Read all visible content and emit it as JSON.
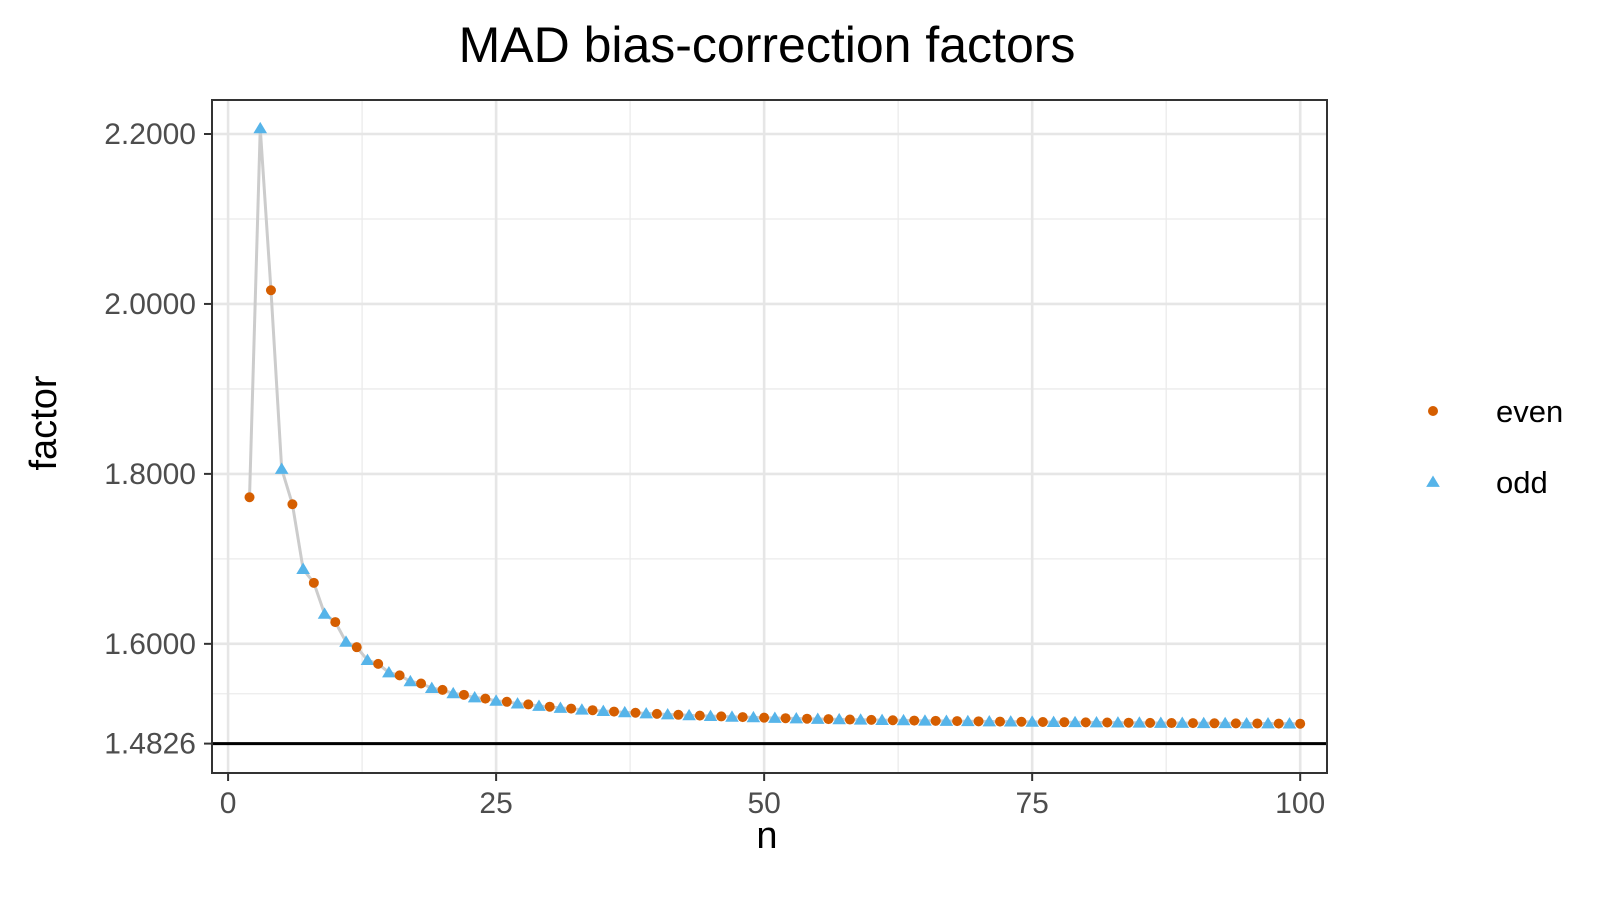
{
  "chart_data": {
    "type": "scatter",
    "title": "MAD bias-correction factors",
    "xlabel": "n",
    "ylabel": "factor",
    "xlim": [
      -1.5,
      102.5
    ],
    "ylim": [
      1.448,
      2.24
    ],
    "x_ticks": [
      0,
      25,
      50,
      75,
      100
    ],
    "x_tick_labels": [
      "0",
      "25",
      "50",
      "75",
      "100"
    ],
    "y_ticks": [
      1.4826,
      1.6,
      1.8,
      2.0,
      2.2
    ],
    "y_tick_labels": [
      "1.4826",
      "1.6000",
      "1.8000",
      "2.0000",
      "2.2000"
    ],
    "reference_line": {
      "y": 1.4826,
      "color": "#000000"
    },
    "grid": true,
    "legend_position": "right",
    "connecting_line_color": "#cccccc",
    "series": [
      {
        "name": "even",
        "shape": "circle",
        "color": "#d55e00",
        "parity": 0
      },
      {
        "name": "odd",
        "shape": "triangle",
        "color": "#56b4e9",
        "parity": 1
      }
    ],
    "x": [
      2,
      3,
      4,
      5,
      6,
      7,
      8,
      9,
      10,
      11,
      12,
      13,
      14,
      15,
      16,
      17,
      18,
      19,
      20,
      21,
      22,
      23,
      24,
      25,
      26,
      27,
      28,
      29,
      30,
      31,
      32,
      33,
      34,
      35,
      36,
      37,
      38,
      39,
      40,
      41,
      42,
      43,
      44,
      45,
      46,
      47,
      48,
      49,
      50,
      51,
      52,
      53,
      54,
      55,
      56,
      57,
      58,
      59,
      60,
      61,
      62,
      63,
      64,
      65,
      66,
      67,
      68,
      69,
      70,
      71,
      72,
      73,
      74,
      75,
      76,
      77,
      78,
      79,
      80,
      81,
      82,
      83,
      84,
      85,
      86,
      87,
      88,
      89,
      90,
      91,
      92,
      93,
      94,
      95,
      96,
      97,
      98,
      99,
      100
    ],
    "y": [
      1.7725,
      2.2066,
      2.0161,
      1.8058,
      1.7643,
      1.688,
      1.6718,
      1.6353,
      1.6256,
      1.6023,
      1.5961,
      1.5809,
      1.5764,
      1.5663,
      1.5629,
      1.5558,
      1.5533,
      1.5479,
      1.5458,
      1.5417,
      1.54,
      1.5368,
      1.5355,
      1.5329,
      1.5318,
      1.5296,
      1.5287,
      1.5268,
      1.526,
      1.5245,
      1.5238,
      1.5225,
      1.5219,
      1.5208,
      1.5203,
      1.5193,
      1.5189,
      1.518,
      1.5176,
      1.5168,
      1.5165,
      1.5158,
      1.5155,
      1.5149,
      1.5146,
      1.5141,
      1.5138,
      1.5134,
      1.5131,
      1.5127,
      1.5125,
      1.5121,
      1.5119,
      1.5116,
      1.5114,
      1.5111,
      1.5109,
      1.5106,
      1.5105,
      1.5102,
      1.5101,
      1.5099,
      1.5097,
      1.5095,
      1.5094,
      1.5092,
      1.5091,
      1.5089,
      1.5088,
      1.5086,
      1.5085,
      1.5084,
      1.5083,
      1.5081,
      1.508,
      1.5079,
      1.5078,
      1.5077,
      1.5076,
      1.5075,
      1.5074,
      1.5073,
      1.5072,
      1.5071,
      1.507,
      1.5069,
      1.5068,
      1.5068,
      1.5067,
      1.5066,
      1.5065,
      1.5065,
      1.5064,
      1.5063,
      1.5063,
      1.5062,
      1.5061,
      1.5061,
      1.506
    ]
  }
}
